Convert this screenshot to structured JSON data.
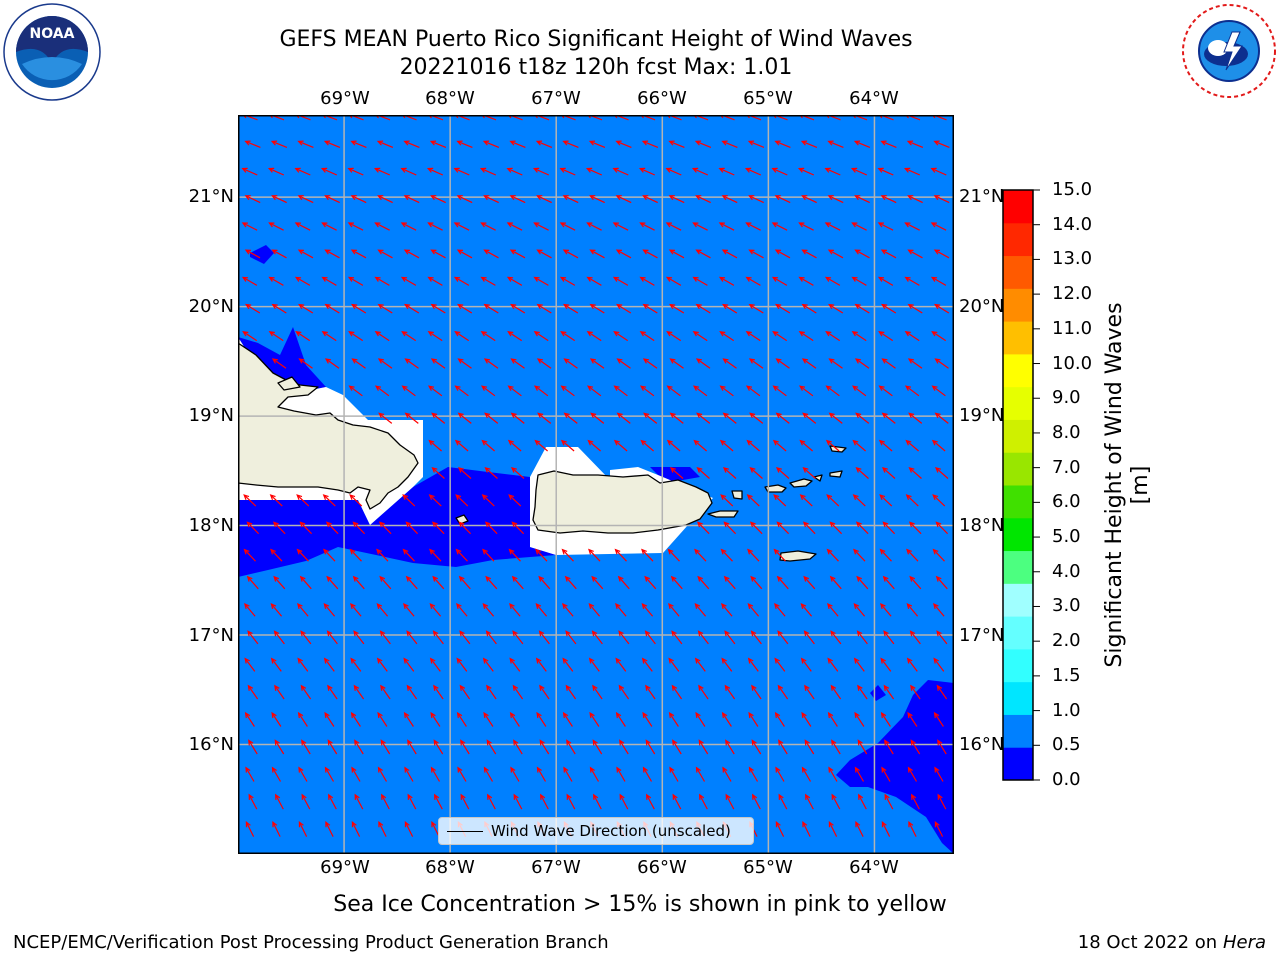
{
  "header": {
    "title_line1": "GEFS MEAN Puerto Rico Significant Height of Wind Waves",
    "title_line2": "20221016 t18z 120h fcst   Max: 1.01"
  },
  "logos": {
    "left": {
      "icon": "noaa-logo",
      "text": "NOAA"
    },
    "right": {
      "icon": "nws-logo"
    }
  },
  "map": {
    "lon_labels": [
      "69°W",
      "68°W",
      "67°W",
      "66°W",
      "65°W",
      "64°W"
    ],
    "lat_labels": [
      "21°N",
      "20°N",
      "19°N",
      "18°N",
      "17°N",
      "16°N"
    ],
    "lon_values": [
      -69,
      -68,
      -67,
      -66,
      -65,
      -64
    ],
    "lat_values": [
      21,
      20,
      19,
      18,
      17,
      16
    ],
    "extent": {
      "lon_min": -70.0,
      "lon_max": -63.25,
      "lat_min": 15.0,
      "lat_max": 21.75
    },
    "colors": {
      "ocean": "#0080ff",
      "calm": "#0000ff",
      "land": "#efefdd",
      "arrows": "#ff0000",
      "grid": "#b4b4b4"
    },
    "legend_label": "Wind Wave Direction (unscaled)"
  },
  "colorbar": {
    "label": "Significant Height of Wind Waves [m]",
    "ticks": [
      "0.0",
      "0.5",
      "1.0",
      "1.5",
      "2.0",
      "3.0",
      "4.0",
      "5.0",
      "6.0",
      "7.0",
      "8.0",
      "9.0",
      "10.0",
      "11.0",
      "12.0",
      "13.0",
      "14.0",
      "15.0"
    ],
    "colors": [
      "#0000ff",
      "#0080ff",
      "#00e6ff",
      "#32ffff",
      "#64ffff",
      "#a0ffff",
      "#4cff80",
      "#00e600",
      "#40e000",
      "#99e600",
      "#cff000",
      "#e6ff00",
      "#ffff00",
      "#ffbf00",
      "#ff8c00",
      "#ff5a00",
      "#ff2800",
      "#ff0000"
    ]
  },
  "notes": {
    "ice": "Sea Ice Concentration > 15% is shown in pink to yellow"
  },
  "footer": {
    "left": "NCEP/EMC/Verification Post Processing Product Generation Branch",
    "right_date": "18 Oct 2022 on ",
    "right_machine": "Hera"
  }
}
